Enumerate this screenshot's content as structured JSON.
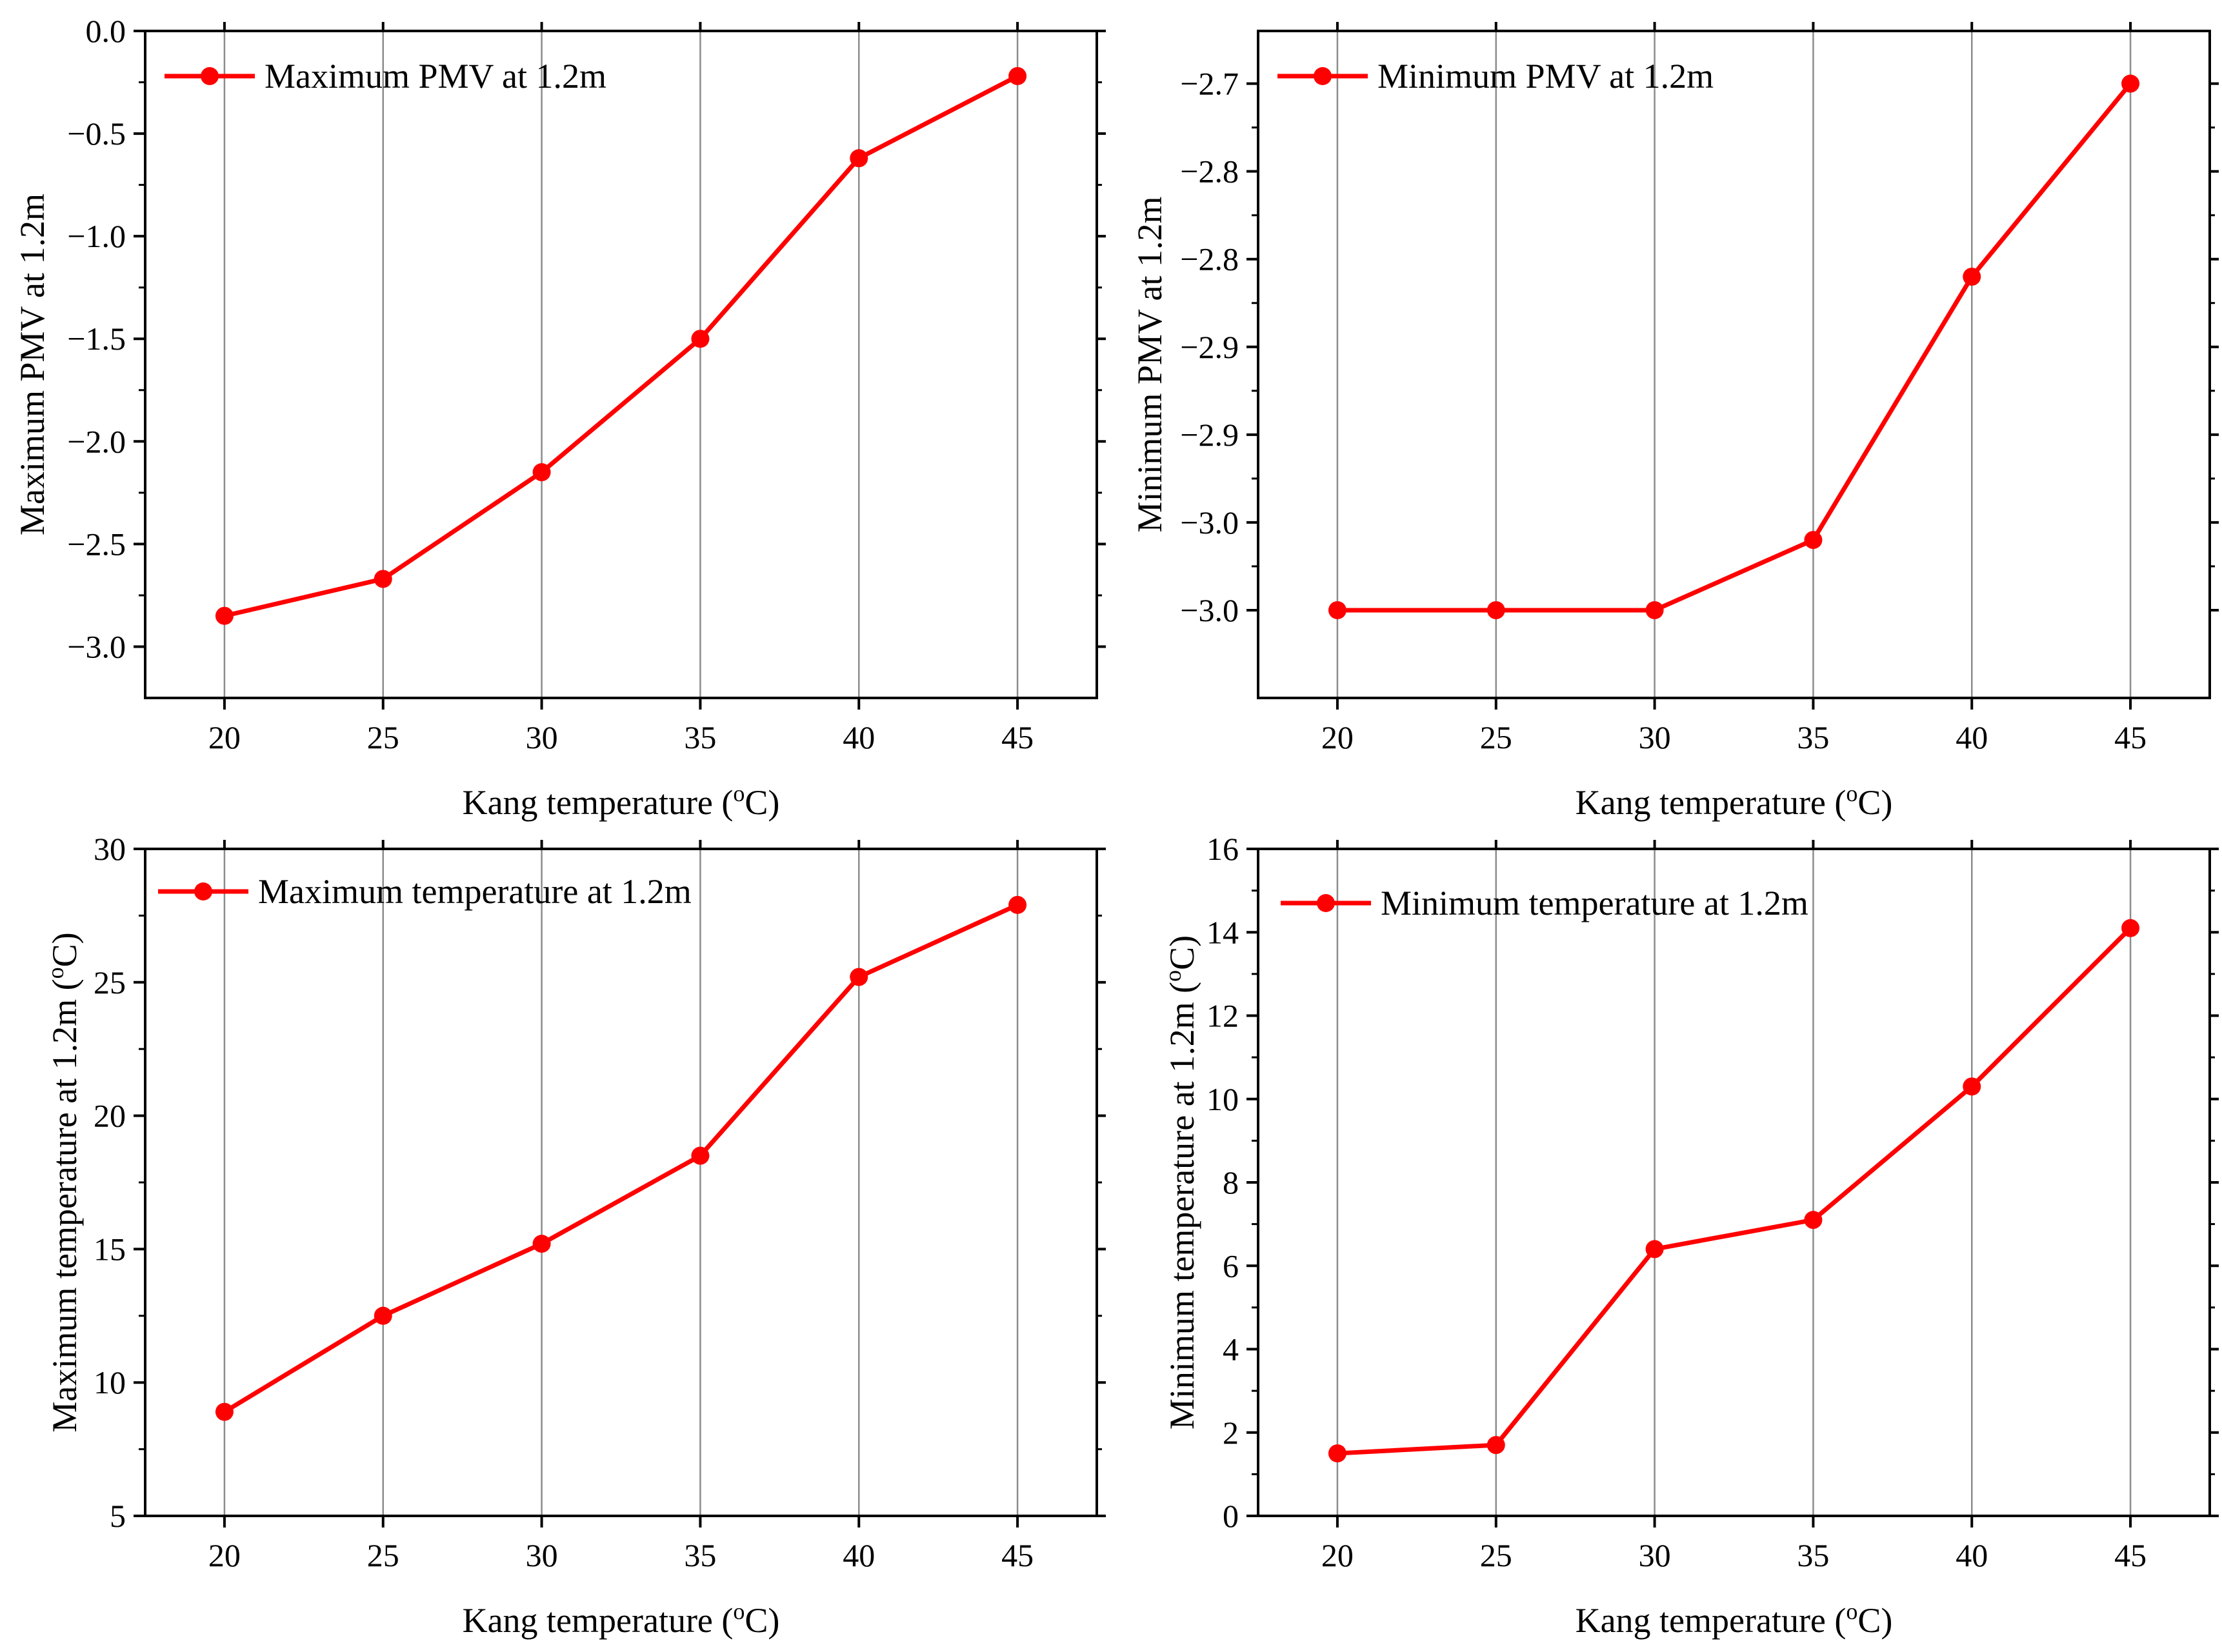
{
  "colors": {
    "series": "#ff0000",
    "axis": "#000000",
    "major_grid": "#8c8c8c",
    "minor_grid": "#c8c8c8"
  },
  "chart_data": [
    {
      "type": "line",
      "title": "",
      "xlabel": "Kang temperature (",
      "xlabel_sup": "o",
      "xlabel_end": "C)",
      "ylabel": "Maximum PMV at 1.2m",
      "xlim": [
        17.5,
        47.5
      ],
      "ylim": [
        -3.25,
        0.0
      ],
      "x": [
        20,
        25,
        30,
        35,
        40,
        45
      ],
      "x_ticks": [
        20,
        25,
        30,
        35,
        40,
        45
      ],
      "x_tick_labels": [
        "20",
        "25",
        "30",
        "35",
        "40",
        "45"
      ],
      "y_ticks": [
        -3.0,
        -2.5,
        -2.0,
        -1.5,
        -1.0,
        -0.5,
        0.0
      ],
      "y_tick_labels": [
        "−3.0",
        "−2.5",
        "−2.0",
        "−1.5",
        "−1.0",
        "−0.5",
        "0.0"
      ],
      "series": [
        {
          "name": "Maximum PMV at 1.2m",
          "values": [
            -2.85,
            -2.67,
            -2.15,
            -1.5,
            -0.62,
            -0.22
          ]
        }
      ],
      "grid": "vertical",
      "legend_position": "top-left"
    },
    {
      "type": "line",
      "title": "",
      "xlabel": "Kang temperature (",
      "xlabel_sup": "o",
      "xlabel_end": "C)",
      "ylabel": "Minimum PMV at 1.2m",
      "xlim": [
        17.5,
        47.5
      ],
      "ylim": [
        -3.05,
        -2.67
      ],
      "x": [
        20,
        25,
        30,
        35,
        40,
        45
      ],
      "x_ticks": [
        20,
        25,
        30,
        35,
        40,
        45
      ],
      "x_tick_labels": [
        "20",
        "25",
        "30",
        "35",
        "40",
        "45"
      ],
      "y_ticks": [
        -3.0,
        -2.95,
        -2.9,
        -2.85,
        -2.8,
        -2.75,
        -2.7
      ],
      "y_tick_labels": [
        "−3.0",
        "−3.0",
        "−2.9",
        "−2.9",
        "−2.8",
        "−2.8",
        "−2.7"
      ],
      "series": [
        {
          "name": "Minimum PMV at 1.2m",
          "values": [
            -3.0,
            -3.0,
            -3.0,
            -2.96,
            -2.81,
            -2.7
          ]
        }
      ],
      "grid": "vertical",
      "legend_position": "top-left"
    },
    {
      "type": "line",
      "title": "",
      "xlabel": "Kang temperature (",
      "xlabel_sup": "o",
      "xlabel_end": "C)",
      "ylabel": "Maximum temperature at 1.2m (",
      "ylabel_sup": "o",
      "ylabel_end": "C)",
      "xlim": [
        17.5,
        47.5
      ],
      "ylim": [
        5,
        30
      ],
      "x": [
        20,
        25,
        30,
        35,
        40,
        45
      ],
      "x_ticks": [
        20,
        25,
        30,
        35,
        40,
        45
      ],
      "x_tick_labels": [
        "20",
        "25",
        "30",
        "35",
        "40",
        "45"
      ],
      "y_ticks": [
        5,
        10,
        15,
        20,
        25,
        30
      ],
      "y_tick_labels": [
        "5",
        "10",
        "15",
        "20",
        "25",
        "30"
      ],
      "series": [
        {
          "name": "Maximum temperature at 1.2m",
          "values": [
            8.9,
            12.5,
            15.2,
            18.5,
            25.2,
            27.9
          ]
        }
      ],
      "grid": "vertical",
      "legend_position": "top-left"
    },
    {
      "type": "line",
      "title": "",
      "xlabel": "Kang temperature (",
      "xlabel_sup": "o",
      "xlabel_end": "C)",
      "ylabel": "Minimum temperature at 1.2m (",
      "ylabel_sup": "o",
      "ylabel_end": "C)",
      "xlim": [
        17.5,
        47.5
      ],
      "ylim": [
        0,
        16
      ],
      "x": [
        20,
        25,
        30,
        35,
        40,
        45
      ],
      "x_ticks": [
        20,
        25,
        30,
        35,
        40,
        45
      ],
      "x_tick_labels": [
        "20",
        "25",
        "30",
        "35",
        "40",
        "45"
      ],
      "y_ticks": [
        0,
        2,
        4,
        6,
        8,
        10,
        12,
        14,
        16
      ],
      "y_tick_labels": [
        "0",
        "2",
        "4",
        "6",
        "8",
        "10",
        "12",
        "14",
        "16"
      ],
      "series": [
        {
          "name": "Minimum temperature at 1.2m",
          "values": [
            1.5,
            1.7,
            6.4,
            7.1,
            10.3,
            14.1
          ]
        }
      ],
      "grid": "vertical",
      "legend_position": "top-left"
    }
  ]
}
